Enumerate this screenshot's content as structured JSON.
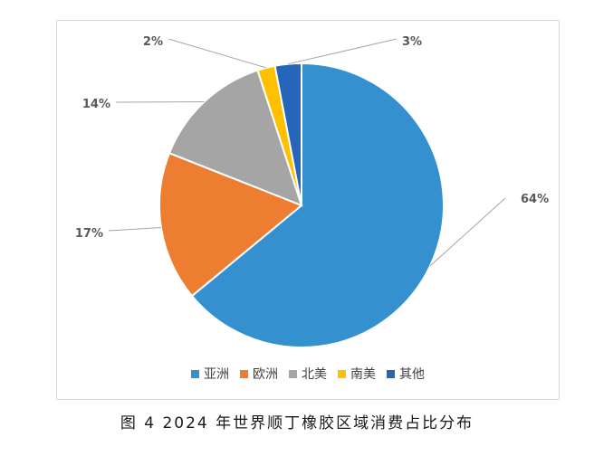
{
  "chart_data": {
    "type": "pie",
    "title": "",
    "categories": [
      "亚洲",
      "欧洲",
      "北美",
      "南美",
      "其他"
    ],
    "values": [
      64,
      17,
      14,
      2,
      3
    ],
    "labels": [
      "64%",
      "17%",
      "14%",
      "2%",
      "3%"
    ],
    "colors": [
      "#3590d0",
      "#ed7d31",
      "#a5a5a5",
      "#ffc000",
      "#2566b8"
    ],
    "legend_position": "bottom",
    "start_angle": "12 o'clock",
    "direction": "clockwise"
  },
  "caption": "图 4  2024 年世界顺丁橡胶区域消费占比分布"
}
